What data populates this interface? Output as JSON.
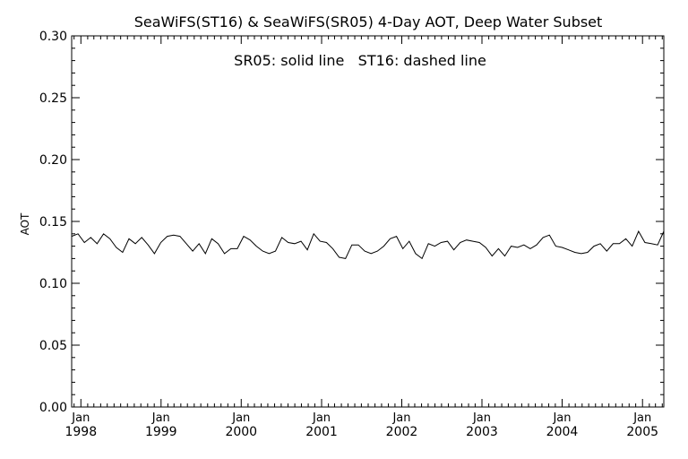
{
  "chart_data": {
    "type": "line",
    "title": "SeaWiFS(ST16) & SeaWiFS(SR05) 4-Day AOT, Deep Water Subset",
    "annotation": "SR05: solid line   ST16: dashed line",
    "xlabel": "",
    "ylabel": "AOT",
    "xlim": [
      "1997-11-20",
      "2005-04-08"
    ],
    "ylim": [
      0.0,
      0.3
    ],
    "grid": false,
    "y_ticks": [
      "0.00",
      "0.05",
      "0.10",
      "0.15",
      "0.20",
      "0.25",
      "0.30"
    ],
    "x_ticks": [
      {
        "date": "1998-01-01",
        "month": "Jan",
        "year": "1998"
      },
      {
        "date": "1999-01-01",
        "month": "Jan",
        "year": "1999"
      },
      {
        "date": "2000-01-01",
        "month": "Jan",
        "year": "2000"
      },
      {
        "date": "2001-01-01",
        "month": "Jan",
        "year": "2001"
      },
      {
        "date": "2002-01-01",
        "month": "Jan",
        "year": "2002"
      },
      {
        "date": "2003-01-01",
        "month": "Jan",
        "year": "2003"
      },
      {
        "date": "2004-01-01",
        "month": "Jan",
        "year": "2004"
      },
      {
        "date": "2005-01-01",
        "month": "Jan",
        "year": "2005"
      }
    ],
    "series": [
      {
        "name": "SR05",
        "style": "solid",
        "color": "#000000",
        "x": [
          "1997-11-20",
          "1997-12-19",
          "1998-01-17",
          "1998-02-15",
          "1998-03-16",
          "1998-04-14",
          "1998-05-13",
          "1998-06-11",
          "1998-07-10",
          "1998-08-08",
          "1998-09-06",
          "1998-10-05",
          "1998-11-03",
          "1998-12-02",
          "1998-12-31",
          "1999-01-29",
          "1999-02-27",
          "1999-03-28",
          "1999-04-26",
          "1999-05-25",
          "1999-06-23",
          "1999-07-22",
          "1999-08-20",
          "1999-09-18",
          "1999-10-17",
          "1999-11-15",
          "1999-12-14",
          "2000-01-12",
          "2000-02-10",
          "2000-03-10",
          "2000-04-08",
          "2000-05-07",
          "2000-06-05",
          "2000-07-04",
          "2000-08-02",
          "2000-08-31",
          "2000-09-29",
          "2000-10-28",
          "2000-11-26",
          "2000-12-25",
          "2001-01-23",
          "2001-02-21",
          "2001-03-22",
          "2001-04-20",
          "2001-05-19",
          "2001-06-17",
          "2001-07-16",
          "2001-08-14",
          "2001-09-12",
          "2001-10-11",
          "2001-11-09",
          "2001-12-08",
          "2002-01-06",
          "2002-02-04",
          "2002-03-05",
          "2002-04-03",
          "2002-05-02",
          "2002-05-31",
          "2002-06-29",
          "2002-07-28",
          "2002-08-26",
          "2002-09-24",
          "2002-10-23",
          "2002-11-21",
          "2002-12-20",
          "2003-01-18",
          "2003-02-16",
          "2003-03-17",
          "2003-04-15",
          "2003-05-14",
          "2003-06-12",
          "2003-07-11",
          "2003-08-09",
          "2003-09-07",
          "2003-10-06",
          "2003-11-04",
          "2003-12-03",
          "2004-01-01",
          "2004-01-30",
          "2004-02-28",
          "2004-03-28",
          "2004-04-26",
          "2004-05-25",
          "2004-06-23",
          "2004-07-22",
          "2004-08-20",
          "2004-09-18",
          "2004-10-17",
          "2004-11-15",
          "2004-12-14",
          "2005-01-12",
          "2005-02-10",
          "2005-03-11",
          "2005-04-08"
        ],
        "y": [
          0.138,
          0.14,
          0.133,
          0.137,
          0.132,
          0.14,
          0.136,
          0.129,
          0.125,
          0.136,
          0.132,
          0.137,
          0.131,
          0.124,
          0.133,
          0.138,
          0.139,
          0.138,
          0.132,
          0.126,
          0.132,
          0.124,
          0.136,
          0.132,
          0.124,
          0.128,
          0.128,
          0.138,
          0.135,
          0.13,
          0.126,
          0.124,
          0.126,
          0.137,
          0.133,
          0.132,
          0.134,
          0.127,
          0.14,
          0.134,
          0.133,
          0.128,
          0.121,
          0.12,
          0.131,
          0.131,
          0.126,
          0.124,
          0.126,
          0.13,
          0.136,
          0.138,
          0.128,
          0.134,
          0.124,
          0.12,
          0.132,
          0.13,
          0.133,
          0.134,
          0.127,
          0.133,
          0.135,
          0.134,
          0.133,
          0.129,
          0.122,
          0.128,
          0.122,
          0.13,
          0.129,
          0.131,
          0.128,
          0.131,
          0.137,
          0.139,
          0.13,
          0.129,
          0.127,
          0.125,
          0.124,
          0.125,
          0.13,
          0.132,
          0.126,
          0.132,
          0.132,
          0.136,
          0.13,
          0.142,
          0.133,
          0.132,
          0.131,
          0.142
        ]
      }
    ]
  }
}
